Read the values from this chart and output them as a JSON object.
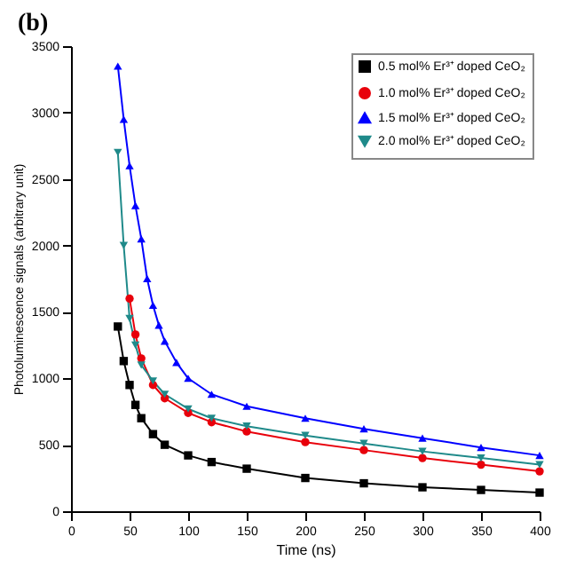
{
  "chart_data": {
    "type": "line",
    "title": "(b)",
    "xlabel": "Time (ns)",
    "ylabel": "Photoluminescence signals (arbitrary unit)",
    "xlim": [
      0,
      400
    ],
    "xticks": [
      0,
      50,
      100,
      150,
      200,
      250,
      300,
      350,
      400
    ],
    "ylim": [
      0,
      3500
    ],
    "yticks": [
      0,
      500,
      1000,
      1500,
      2000,
      2500,
      3000,
      3500
    ],
    "legend": "top right",
    "grid": false,
    "series": [
      {
        "name": "0.5 mol% Er³⁺ doped CeO₂",
        "color": "#000000",
        "marker": "square",
        "x": [
          40,
          45,
          50,
          55,
          60,
          70,
          80,
          100,
          120,
          150,
          200,
          250,
          300,
          350,
          400
        ],
        "values": [
          1390,
          1130,
          950,
          800,
          700,
          580,
          500,
          420,
          370,
          320,
          250,
          210,
          180,
          160,
          140
        ]
      },
      {
        "name": "1.0 mol% Er³⁺ doped CeO₂",
        "color": "#e8000b",
        "marker": "circle",
        "x": [
          50,
          55,
          60,
          70,
          80,
          100,
          120,
          150,
          200,
          250,
          300,
          350,
          400
        ],
        "values": [
          1600,
          1330,
          1150,
          950,
          850,
          740,
          670,
          600,
          520,
          460,
          400,
          350,
          300
        ]
      },
      {
        "name": "1.5 mol% Er³⁺ doped CeO₂",
        "color": "#0000ff",
        "marker": "triangle",
        "x": [
          40,
          45,
          50,
          55,
          60,
          65,
          70,
          75,
          80,
          90,
          100,
          120,
          150,
          200,
          250,
          300,
          350,
          400
        ],
        "values": [
          3350,
          2950,
          2600,
          2300,
          2050,
          1750,
          1550,
          1400,
          1280,
          1120,
          1000,
          880,
          790,
          700,
          620,
          550,
          480,
          420
        ]
      },
      {
        "name": "2.0 mol% Er³⁺ doped CeO₂",
        "color": "#1f8a8a",
        "marker": "triangle-down",
        "x": [
          40,
          45,
          50,
          55,
          60,
          70,
          80,
          100,
          120,
          150,
          200,
          250,
          300,
          350,
          400
        ],
        "values": [
          2700,
          2000,
          1450,
          1250,
          1100,
          980,
          880,
          770,
          700,
          640,
          570,
          510,
          450,
          400,
          350
        ]
      }
    ]
  }
}
